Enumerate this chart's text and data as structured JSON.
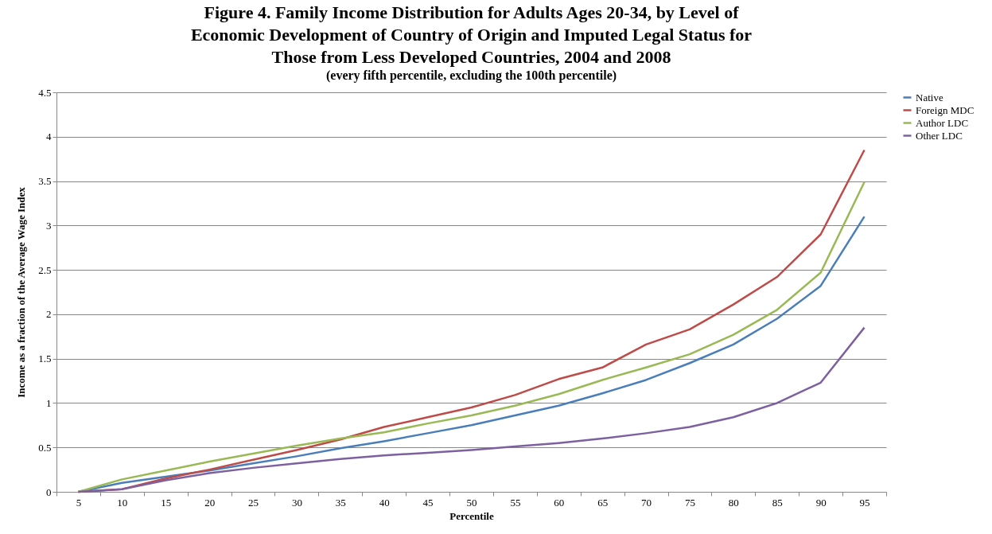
{
  "chart_data": {
    "type": "line",
    "title": "Figure 4.  Family Income Distribution for Adults Ages 20-34, by Level of Economic Development of Country of Origin and Imputed Legal Status for Those from Less Developed Countries, 2004 and 2008",
    "subtitle": "(every fifth percentile, excluding the 100th percentile)",
    "xlabel": "Percentile",
    "ylabel": "Income as a fraction of the Average Wage Index",
    "categories": [
      "5",
      "10",
      "15",
      "20",
      "25",
      "30",
      "35",
      "40",
      "45",
      "50",
      "55",
      "60",
      "65",
      "70",
      "75",
      "80",
      "85",
      "90",
      "95"
    ],
    "series": [
      {
        "name": "Native",
        "color": "#4a7ebb",
        "values": [
          0,
          0.1,
          0.17,
          0.24,
          0.32,
          0.4,
          0.49,
          0.57,
          0.66,
          0.75,
          0.86,
          0.97,
          1.11,
          1.26,
          1.45,
          1.66,
          1.95,
          2.32,
          3.1
        ]
      },
      {
        "name": "Foreign MDC",
        "color": "#be4b48",
        "values": [
          0,
          0.03,
          0.15,
          0.25,
          0.36,
          0.47,
          0.59,
          0.73,
          0.84,
          0.95,
          1.09,
          1.27,
          1.4,
          1.66,
          1.83,
          2.11,
          2.42,
          2.9,
          3.85
        ]
      },
      {
        "name": "Author LDC",
        "color": "#98b954",
        "values": [
          0,
          0.14,
          0.24,
          0.34,
          0.43,
          0.52,
          0.6,
          0.67,
          0.77,
          0.86,
          0.97,
          1.1,
          1.26,
          1.4,
          1.55,
          1.77,
          2.05,
          2.47,
          3.49
        ]
      },
      {
        "name": "Other LDC",
        "color": "#7d60a0",
        "values": [
          0,
          0.03,
          0.13,
          0.21,
          0.27,
          0.32,
          0.37,
          0.41,
          0.44,
          0.47,
          0.51,
          0.55,
          0.6,
          0.66,
          0.73,
          0.84,
          1.0,
          1.23,
          1.85
        ]
      }
    ],
    "ylim": [
      0,
      4.5
    ],
    "yticks": [
      0,
      0.5,
      1,
      1.5,
      2,
      2.5,
      3,
      3.5,
      4,
      4.5
    ],
    "grid": "y",
    "legend": "right",
    "marker": "none",
    "line_style": "solid"
  }
}
